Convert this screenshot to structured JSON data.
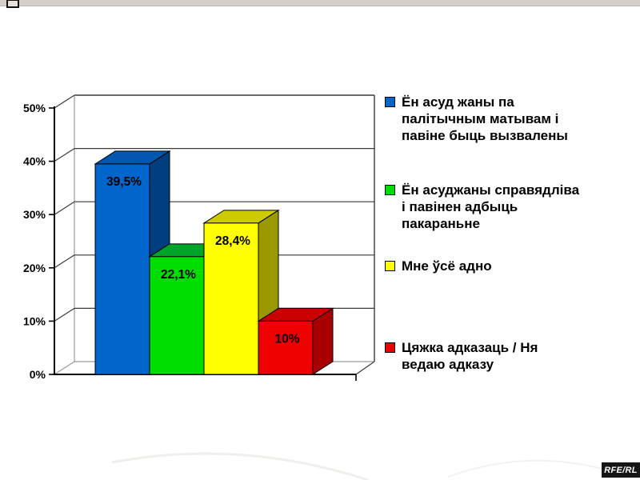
{
  "window": {
    "top_strip_color": "#d4d0c8"
  },
  "badge": {
    "label": "RFE/RL",
    "bg": "#161616",
    "fg": "#ffffff"
  },
  "chart_data": {
    "type": "bar",
    "variant": "3d",
    "title": "",
    "xlabel": "",
    "ylabel": "",
    "ylim": [
      0,
      50
    ],
    "grid": true,
    "legend_position": "right",
    "yticks": [
      {
        "label": "0%",
        "value": 0
      },
      {
        "label": "10%",
        "value": 10
      },
      {
        "label": "20%",
        "value": 20
      },
      {
        "label": "30%",
        "value": 30
      },
      {
        "label": "40%",
        "value": 40
      },
      {
        "label": "50%",
        "value": 50
      }
    ],
    "categories": [
      "Ён асуд жаны па палітычным матывам і павіне быць вызвалены",
      "Ён асуджаны справядліва і павінен адбыць пакараньне",
      "Мне ўсё адно",
      "Цяжка адказаць / Ня ведаю адказу"
    ],
    "values": [
      39.5,
      22.1,
      28.4,
      10
    ],
    "bars": [
      {
        "value": 39.5,
        "display": "39,5%",
        "colors": {
          "front": "#0066cc",
          "top": "#0057ad",
          "side": "#003e80"
        }
      },
      {
        "value": 22.1,
        "display": "22,1%",
        "colors": {
          "front": "#00dd00",
          "top": "#00a428",
          "side": "#007d00"
        }
      },
      {
        "value": 28.4,
        "display": "28,4%",
        "colors": {
          "front": "#ffff00",
          "top": "#cbcb00",
          "side": "#9a9a00"
        }
      },
      {
        "value": 10,
        "display": "10%",
        "colors": {
          "front": "#ee0000",
          "top": "#cb0000",
          "side": "#a80000"
        }
      }
    ],
    "legend": [
      {
        "color": "#0066cc",
        "lines": [
          "Ён асуд жаны па",
          "палітычным матывам і",
          "павіне быць вызвалены"
        ]
      },
      {
        "color": "#00dd00",
        "lines": [
          "Ён асуджаны справядліва",
          "і павінен адбыць",
          "пакараньне"
        ]
      },
      {
        "color": "#ffff00",
        "lines": [
          "Мне ўсё адно"
        ]
      },
      {
        "color": "#ee0000",
        "lines": [
          "Цяжка адказаць / Ня",
          "ведаю адказу"
        ]
      }
    ]
  }
}
